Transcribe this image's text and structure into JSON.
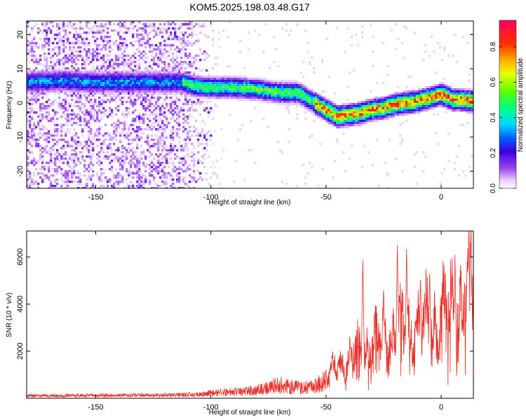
{
  "title": "KOM5.2025.198.03.48.G17",
  "chart_data": [
    {
      "type": "heatmap",
      "xlabel": "Height of straight line (km)",
      "ylabel": "Frequency (Hz)",
      "xlim": [
        -180,
        14
      ],
      "ylim": [
        -25,
        24
      ],
      "xticks": [
        -150,
        -100,
        -50,
        0
      ],
      "yticks": [
        -20,
        -10,
        0,
        10,
        20
      ],
      "colorbar": {
        "label": "Normalized spectral amplitude",
        "range": [
          0,
          0.95
        ],
        "ticks": [
          0.0,
          0.2,
          0.4,
          0.6,
          0.8
        ],
        "tick_labels": [
          "0.0",
          "0.2",
          "0.4",
          "0.6",
          "0.8"
        ]
      },
      "ridge": {
        "points": [
          [
            -180,
            6
          ],
          [
            -165,
            6.5
          ],
          [
            -150,
            6
          ],
          [
            -140,
            6
          ],
          [
            -130,
            6
          ],
          [
            -112,
            6
          ],
          [
            -108,
            5
          ],
          [
            -100,
            4.5
          ],
          [
            -90,
            4.5
          ],
          [
            -80,
            4
          ],
          [
            -70,
            3
          ],
          [
            -62,
            3
          ],
          [
            -55,
            0
          ],
          [
            -50,
            -2
          ],
          [
            -45,
            -4
          ],
          [
            -40,
            -3.5
          ],
          [
            -35,
            -3
          ],
          [
            -30,
            -2
          ],
          [
            -25,
            -1.5
          ],
          [
            -20,
            -0.5
          ],
          [
            -15,
            0
          ],
          [
            -10,
            0.5
          ],
          [
            -5,
            1.5
          ],
          [
            0,
            2.5
          ],
          [
            5,
            1
          ],
          [
            10,
            0.8
          ],
          [
            14,
            0.5
          ]
        ]
      },
      "noise_region": {
        "x": [
          -180,
          -95
        ],
        "y": [
          -25,
          24
        ]
      }
    },
    {
      "type": "line",
      "xlabel": "Height of straight line (km)",
      "ylabel": "SNR (10 * v/v)",
      "xlim": [
        -180,
        14
      ],
      "ylim": [
        0,
        7100
      ],
      "xticks": [
        -150,
        -100,
        -50,
        0
      ],
      "yticks": [
        2000,
        4000,
        6000
      ],
      "series": [
        {
          "color": "#e8312a",
          "envelope": [
            [
              -180,
              150
            ],
            [
              -150,
              170
            ],
            [
              -120,
              190
            ],
            [
              -105,
              230
            ],
            [
              -100,
              320
            ],
            [
              -90,
              380
            ],
            [
              -80,
              500
            ],
            [
              -75,
              650
            ],
            [
              -70,
              850
            ],
            [
              -65,
              700
            ],
            [
              -60,
              600
            ],
            [
              -55,
              800
            ],
            [
              -50,
              1050
            ],
            [
              -45,
              1900
            ],
            [
              -40,
              2300
            ],
            [
              -35,
              2900
            ],
            [
              -30,
              3000
            ],
            [
              -25,
              3500
            ],
            [
              -20,
              3700
            ],
            [
              -15,
              3900
            ],
            [
              -10,
              4100
            ],
            [
              -5,
              4300
            ],
            [
              0,
              4700
            ],
            [
              5,
              5200
            ],
            [
              10,
              5900
            ],
            [
              14,
              6500
            ]
          ],
          "spikes": [
            [
              -34,
              5950
            ],
            [
              -25,
              4800
            ],
            [
              -19,
              6650
            ],
            [
              -15,
              6500
            ],
            [
              -9,
              5250
            ],
            [
              -5,
              5500
            ],
            [
              6,
              6100
            ],
            [
              12,
              7000
            ]
          ]
        }
      ]
    }
  ]
}
